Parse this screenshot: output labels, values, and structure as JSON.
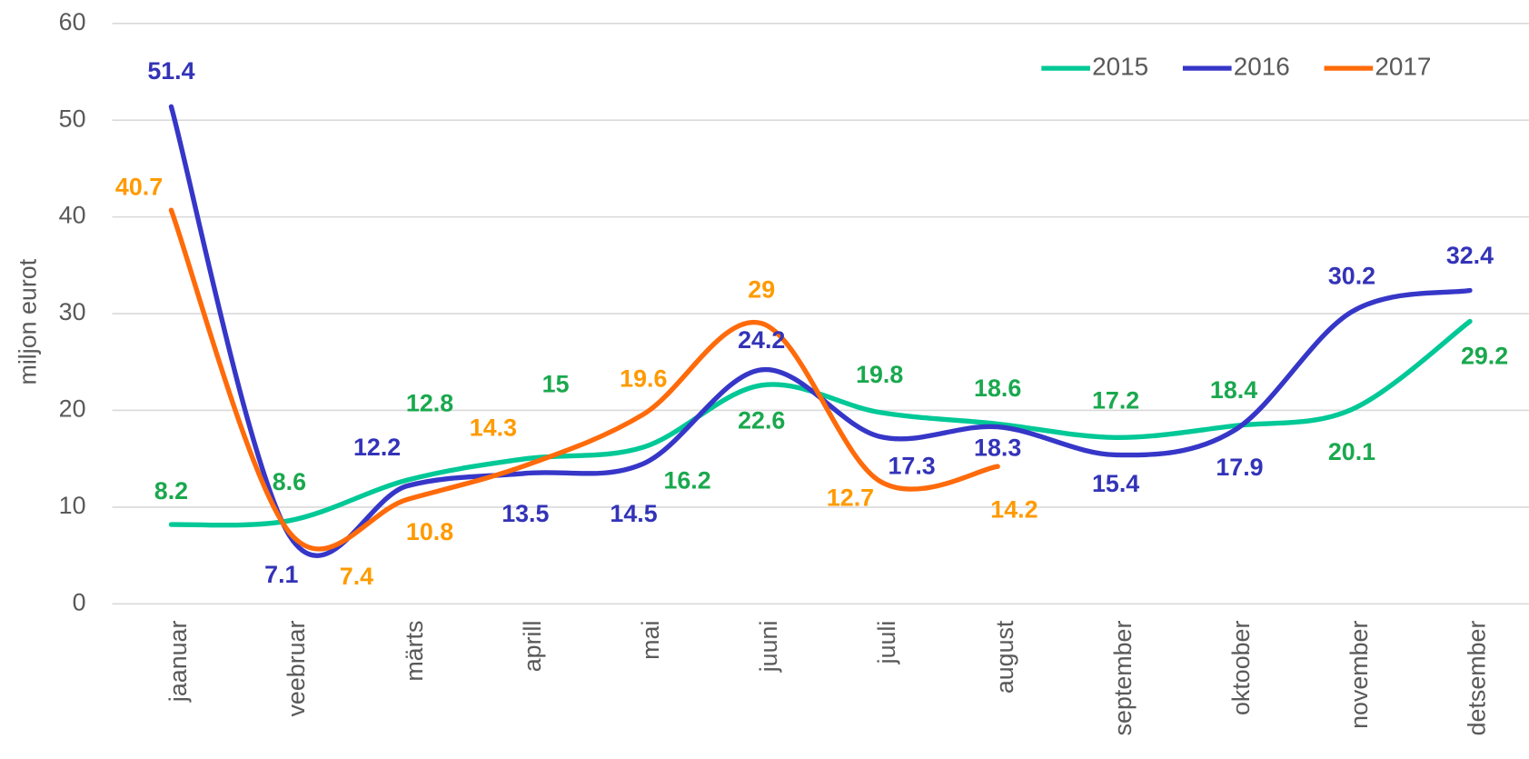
{
  "chart_data": {
    "type": "line",
    "smooth": true,
    "y_label": "miljon eurot",
    "categories": [
      "jaanuar",
      "veebruar",
      "märts",
      "aprill",
      "mai",
      "juuni",
      "juuli",
      "august",
      "september",
      "oktoober",
      "november",
      "detsember"
    ],
    "series": [
      {
        "name": "2015",
        "color": "#00c896",
        "label_color": "#1aa84e",
        "values": [
          8.2,
          8.6,
          12.8,
          15,
          16.2,
          22.6,
          19.8,
          18.6,
          17.2,
          18.4,
          20.1,
          29.2
        ]
      },
      {
        "name": "2016",
        "color": "#3636c8",
        "label_color": "#3333b8",
        "values": [
          51.4,
          7.1,
          12.2,
          13.5,
          14.5,
          24.2,
          17.3,
          18.3,
          15.4,
          17.9,
          30.2,
          32.4
        ]
      },
      {
        "name": "2017",
        "color": "#ff6a0a",
        "label_color": "#ff9a00",
        "values": [
          40.7,
          7.4,
          10.8,
          14.3,
          19.6,
          29,
          12.7,
          14.2,
          null,
          null,
          null,
          null
        ]
      }
    ],
    "ylim": [
      0,
      60
    ],
    "yticks": [
      0,
      10,
      20,
      30,
      40,
      50,
      60
    ],
    "grid": true,
    "legend": "top-right"
  }
}
